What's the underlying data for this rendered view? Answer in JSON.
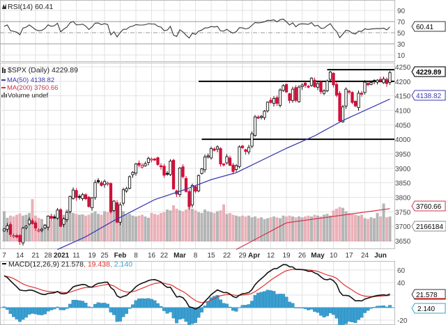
{
  "chart_data": {
    "type": "candlestick",
    "title": "$SPX (Daily) 4229.89",
    "legend": {
      "rsi": "RSI(14) 60.41",
      "price": "$SPX (Daily) 4229.89",
      "ma50": "MA(50) 4138.82",
      "ma200": "MA(200) 3760.66",
      "volume": "Volume undef",
      "macd": "MACD(12,26,9) 21.578",
      "macd_signal": ", 19.438",
      "macd_hist": ", 2.140"
    },
    "badges": {
      "rsi": "60.41",
      "price": "4229.89",
      "ma50": "4138.82",
      "ma200": "3760.66",
      "volume": "2166184",
      "macd": "21.578",
      "macd_hist": "2.140"
    },
    "rsi_ticks": [
      "90",
      "70",
      "50",
      "30",
      "10"
    ],
    "rsi_tick_values": [
      90,
      70,
      50,
      30,
      10
    ],
    "price_ticks": [
      "4250",
      "4200",
      "4150",
      "4100",
      "4050",
      "4000",
      "3950",
      "3900",
      "3850",
      "3800",
      "3750",
      "3700",
      "3650"
    ],
    "price_tick_values": [
      4250,
      4200,
      4150,
      4100,
      4050,
      4000,
      3950,
      3900,
      3850,
      3800,
      3750,
      3700,
      3650
    ],
    "macd_ticks": [
      "60",
      "40",
      "-20"
    ],
    "macd_tick_values": [
      60,
      40,
      -20
    ],
    "date_labels": [
      {
        "label": "7",
        "i": 0
      },
      {
        "label": "14",
        "i": 5
      },
      {
        "label": "21",
        "i": 10
      },
      {
        "label": "28",
        "i": 14
      },
      {
        "label": "2021",
        "i": 18,
        "bold": true
      },
      {
        "label": "11",
        "i": 23
      },
      {
        "label": "19",
        "i": 28
      },
      {
        "label": "25",
        "i": 32
      },
      {
        "label": "Feb",
        "i": 37,
        "bold": true
      },
      {
        "label": "8",
        "i": 42
      },
      {
        "label": "16",
        "i": 47
      },
      {
        "label": "22",
        "i": 51
      },
      {
        "label": "Mar",
        "i": 56,
        "bold": true
      },
      {
        "label": "8",
        "i": 61
      },
      {
        "label": "15",
        "i": 66
      },
      {
        "label": "22",
        "i": 71
      },
      {
        "label": "29",
        "i": 76
      },
      {
        "label": "Apr",
        "i": 79,
        "bold": true
      },
      {
        "label": "12",
        "i": 85
      },
      {
        "label": "19",
        "i": 90
      },
      {
        "label": "26",
        "i": 95
      },
      {
        "label": "May",
        "i": 100,
        "bold": true
      },
      {
        "label": "10",
        "i": 105
      },
      {
        "label": "17",
        "i": 110
      },
      {
        "label": "24",
        "i": 115
      },
      {
        "label": "Jun",
        "i": 120,
        "bold": true
      }
    ],
    "closes": [
      3691,
      3702,
      3672,
      3668,
      3663,
      3647,
      3694,
      3701,
      3722,
      3709,
      3694,
      3687,
      3690,
      3703,
      3735,
      3727,
      3732,
      3756,
      3700,
      3726,
      3748,
      3803,
      3825,
      3799,
      3801,
      3809,
      3795,
      3768,
      3798,
      3851,
      3853,
      3841,
      3855,
      3849,
      3750,
      3787,
      3714,
      3774,
      3826,
      3830,
      3871,
      3886,
      3915,
      3911,
      3910,
      3916,
      3934,
      3932,
      3931,
      3913,
      3906,
      3876,
      3881,
      3925,
      3829,
      3811,
      3901,
      3871,
      3820,
      3768,
      3841,
      3821,
      3875,
      3898,
      3939,
      3943,
      3968,
      3962,
      3974,
      3915,
      3913,
      3940,
      3910,
      3889,
      3909,
      3974,
      3971,
      3958,
      3972,
      4019,
      4077,
      4073,
      4079,
      4097,
      4128,
      4127,
      4141,
      4124,
      4170,
      4185,
      4163,
      4134,
      4173,
      4134,
      4180,
      4187,
      4186,
      4183,
      4211,
      4181,
      4192,
      4164,
      4167,
      4201,
      4232,
      4188,
      4152,
      4063,
      4112,
      4173,
      4163,
      4127,
      4115,
      4159,
      4156,
      4197,
      4188,
      4196,
      4200,
      4204,
      4202,
      4208,
      4192,
      4230
    ],
    "volume_relative": [
      70,
      55,
      60,
      58,
      62,
      65,
      60,
      62,
      66,
      98,
      60,
      55,
      52,
      40,
      45,
      48,
      55,
      58,
      72,
      62,
      74,
      70,
      66,
      64,
      62,
      63,
      60,
      62,
      66,
      70,
      64,
      62,
      70,
      68,
      88,
      78,
      76,
      72,
      70,
      62,
      64,
      60,
      58,
      60,
      62,
      58,
      55,
      66,
      64,
      62,
      66,
      68,
      74,
      72,
      84,
      76,
      72,
      70,
      74,
      80,
      76,
      72,
      68,
      66,
      74,
      70,
      68,
      66,
      70,
      72,
      86,
      64,
      66,
      62,
      60,
      58,
      60,
      58,
      60,
      56,
      58,
      54,
      56,
      52,
      54,
      56,
      58,
      56,
      54,
      60,
      58,
      60,
      58,
      56,
      58,
      56,
      58,
      60,
      58,
      62,
      60,
      58,
      62,
      64,
      60,
      72,
      76,
      80,
      78,
      70,
      66,
      64,
      62,
      60,
      62,
      54,
      52,
      56,
      54,
      66,
      58,
      88,
      56,
      58
    ],
    "ma50_anchors": [
      [
        17,
        3620
      ],
      [
        26,
        3664
      ],
      [
        35,
        3720
      ],
      [
        48,
        3792
      ],
      [
        58,
        3828
      ],
      [
        66,
        3861
      ],
      [
        74,
        3885
      ],
      [
        90,
        3969
      ],
      [
        99,
        4012
      ],
      [
        108,
        4065
      ],
      [
        123,
        4139
      ]
    ],
    "ma200_anchors": [
      [
        74,
        3620
      ],
      [
        90,
        3712
      ],
      [
        123,
        3761
      ]
    ],
    "horizontal_lines": [
      {
        "value": 4240,
        "from": 103
      },
      {
        "value": 4200,
        "from": 62
      },
      {
        "value": 4000,
        "from": 63
      }
    ],
    "colors": {
      "up": "#111111",
      "down": "#d0103a",
      "ma50": "#3b3bb0",
      "ma200": "#d0304a",
      "macd": "#111111",
      "signal": "#e03030",
      "hist": "#3a9fd0",
      "vol_up": "#a9a9a9",
      "vol_down": "#e7a3ad"
    }
  }
}
